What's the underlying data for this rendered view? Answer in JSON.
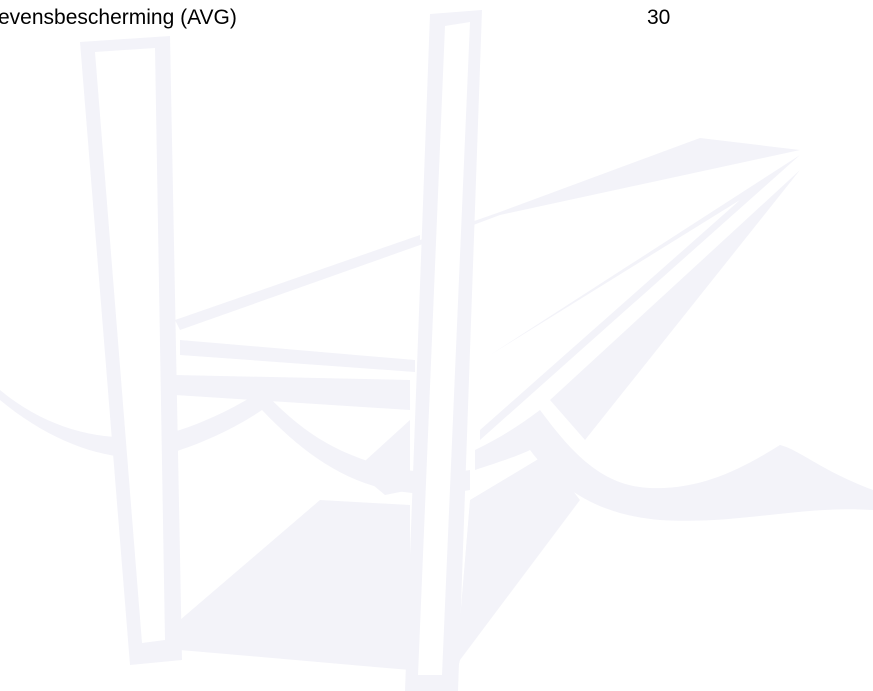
{
  "toc_entry": {
    "title": "evensbescherming (AVG)",
    "page": "30"
  }
}
